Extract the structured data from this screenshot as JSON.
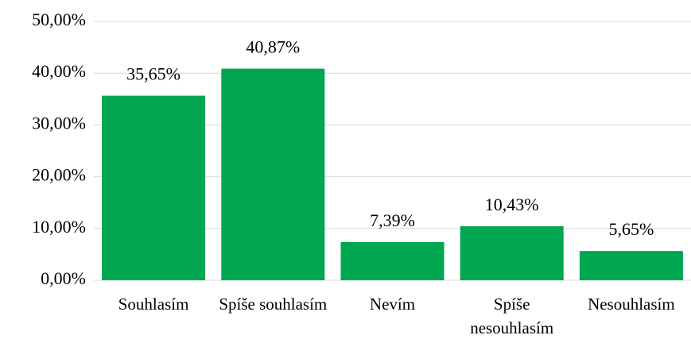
{
  "chart_data": {
    "type": "bar",
    "categories": [
      "Souhlasím",
      "Spíše souhlasím",
      "Nevím",
      "Spíše nesouhlasím",
      "Nesouhlasím"
    ],
    "values": [
      35.65,
      40.87,
      7.39,
      10.43,
      5.65
    ],
    "value_labels": [
      "35,65%",
      "40,87%",
      "7,39%",
      "10,43%",
      "5,65%"
    ],
    "color": "#00a650",
    "ylim": [
      0,
      50
    ],
    "yticks": [
      {
        "value": 0,
        "label": "0,00%"
      },
      {
        "value": 10,
        "label": "10,00%"
      },
      {
        "value": 20,
        "label": "20,00%"
      },
      {
        "value": 30,
        "label": "30,00%"
      },
      {
        "value": 40,
        "label": "40,00%"
      },
      {
        "value": 50,
        "label": "50,00%"
      }
    ],
    "grid": true
  }
}
